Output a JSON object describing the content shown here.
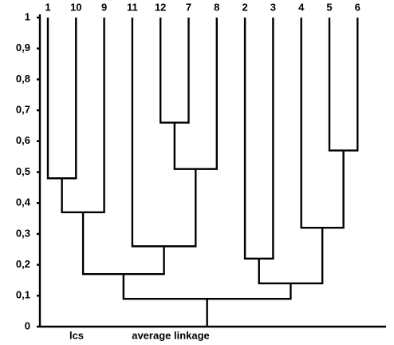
{
  "chart_data": {
    "type": "dendrogram",
    "ylim": [
      0,
      1
    ],
    "yticks": [
      1,
      {
        "value": 0.9,
        "label": "0,9"
      },
      {
        "value": 0.8,
        "label": "0,8"
      },
      {
        "value": 0.7,
        "label": "0,7"
      },
      {
        "value": 0.6,
        "label": "0,6"
      },
      {
        "value": 0.5,
        "label": "0,5"
      },
      {
        "value": 0.4,
        "label": "0,4"
      },
      {
        "value": 0.3,
        "label": "0,3"
      },
      {
        "value": 0.2,
        "label": "0,2"
      },
      {
        "value": 0.1,
        "label": "0,1"
      },
      0
    ],
    "notes": [
      "lcs",
      "average linkage"
    ],
    "tree": {
      "height": 0.09,
      "children": [
        {
          "height": 0.17,
          "children": [
            {
              "height": 0.37,
              "children": [
                {
                  "height": 0.48,
                  "children": [
                    {
                      "label": "1"
                    },
                    {
                      "label": "10"
                    }
                  ]
                },
                {
                  "label": "9"
                }
              ]
            },
            {
              "height": 0.26,
              "children": [
                {
                  "label": "11"
                },
                {
                  "height": 0.51,
                  "children": [
                    {
                      "height": 0.66,
                      "children": [
                        {
                          "label": "12"
                        },
                        {
                          "label": "7"
                        }
                      ]
                    },
                    {
                      "label": "8"
                    }
                  ]
                }
              ]
            }
          ]
        },
        {
          "height": 0.14,
          "children": [
            {
              "height": 0.22,
              "children": [
                {
                  "label": "2"
                },
                {
                  "label": "3"
                }
              ]
            },
            {
              "height": 0.32,
              "children": [
                {
                  "label": "4"
                },
                {
                  "height": 0.57,
                  "children": [
                    {
                      "label": "5"
                    },
                    {
                      "label": "6"
                    }
                  ]
                }
              ]
            }
          ]
        }
      ]
    }
  }
}
